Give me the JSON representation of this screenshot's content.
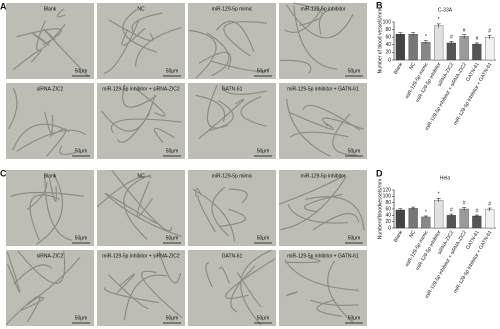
{
  "panels": [
    {
      "letter": "A",
      "labels": [
        "Blank",
        "NC",
        "miR-129-5p mimic",
        "miR-129-5p inhibitor",
        "siRNA-ZIC2",
        "miR-129-5p inhibitor + siRNA-ZIC2",
        "GATN-61",
        "miR-129-5p inhibitor + GATN-61"
      ]
    },
    {
      "letter": "C",
      "labels": [
        "Blank",
        "NC",
        "miR-129-5p mimic",
        "miR-129-5p inhibitor",
        "siRNA-ZIC2",
        "miR-129-5p inhibitor + siRNA-ZIC2",
        "GATN-61",
        "miR-129-5p inhibitor + GATN-61"
      ]
    }
  ],
  "scale_bar": "50μm",
  "chart_data": [
    {
      "type": "bar",
      "panel_label": "B",
      "title": "C-33A",
      "ylabel": "Number of blood vessels/mm",
      "categories": [
        "Blank",
        "NC",
        "miR-129-5p mimic",
        "miR-129-5p inhibitor",
        "siRNA-ZIC2",
        "miR-129-5p inhibitor + siRNA-ZIC2",
        "GATN-61",
        "miR-129-5p inhibitor + GATN-61"
      ],
      "values": [
        68,
        68,
        47,
        90,
        45,
        62,
        42,
        60
      ],
      "errors": [
        4,
        4,
        4,
        5,
        4,
        5,
        3,
        5
      ],
      "annotations": [
        null,
        null,
        "*",
        "*",
        "#",
        "#",
        "#",
        "#"
      ],
      "colors": [
        "#444444",
        "#777777",
        "#888888",
        "#e0e0e0",
        "#555555",
        "#9a9a9a",
        "#555555",
        "#f2f2f2"
      ],
      "ylim": [
        0,
        100
      ],
      "yticks": [
        0,
        20,
        40,
        60,
        80,
        100
      ]
    },
    {
      "type": "bar",
      "panel_label": "D",
      "title": "Hela",
      "ylabel": "Numberofbloodvessels/mm",
      "categories": [
        "Blank",
        "NC",
        "miR-129-5p mimic",
        "miR-129-5p inhibitor",
        "siRNA-ZIC2",
        "miR-129-5p inhibitor + siRNA-ZIC2",
        "GATN-61",
        "miR-129-5p inhibitor + GATN-61"
      ],
      "values": [
        57,
        62,
        35,
        88,
        40,
        60,
        38,
        58
      ],
      "errors": [
        4,
        4,
        3,
        6,
        4,
        5,
        3,
        5
      ],
      "annotations": [
        null,
        null,
        "*",
        "*",
        "#",
        "#",
        "#",
        "#"
      ],
      "colors": [
        "#444444",
        "#777777",
        "#888888",
        "#e0e0e0",
        "#555555",
        "#9a9a9a",
        "#555555",
        "#f2f2f2"
      ],
      "ylim": [
        0,
        120
      ],
      "yticks": [
        0,
        20,
        40,
        60,
        80,
        100,
        120
      ]
    }
  ]
}
